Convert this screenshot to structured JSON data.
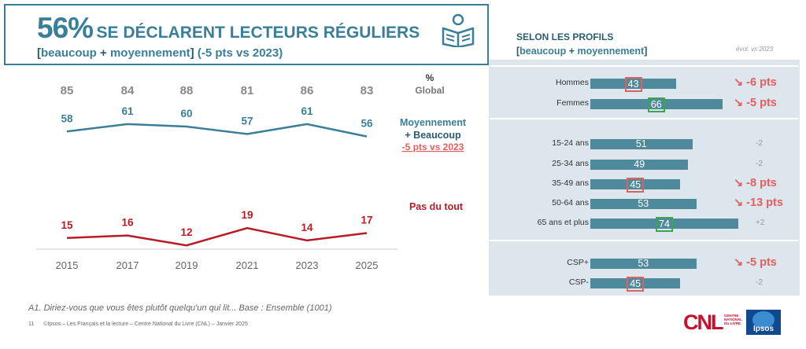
{
  "header": {
    "title_pct": "56%",
    "title_rest": "SE DÉCLARENT LECTEURS RÉGULIERS",
    "subtitle_open": "[",
    "subtitle_a": "beaucoup",
    "subtitle_plus": " + ",
    "subtitle_b": "moyennement",
    "subtitle_close": "]",
    "subtitle_evol": "(-5 pts vs 2023)"
  },
  "chart_data": [
    {
      "type": "line",
      "categories": [
        "2015",
        "2017",
        "2019",
        "2021",
        "2023",
        "2025"
      ],
      "global_header": "%",
      "global_label": "Global",
      "global_values": [
        85,
        84,
        88,
        81,
        86,
        83
      ],
      "series": [
        {
          "name": "Moyennement + Beaucoup",
          "values": [
            58,
            61,
            60,
            57,
            61,
            56
          ],
          "color": "#3a7f98",
          "note": "-5 pts vs 2023",
          "note_color": "#e06060"
        },
        {
          "name": "Pas du tout",
          "values": [
            15,
            16,
            12,
            19,
            14,
            17
          ],
          "color": "#b71c24"
        }
      ]
    },
    {
      "type": "bar",
      "title": "SELON LES PROFILS",
      "subtitle_open": "[",
      "subtitle_a": "beaucoup",
      "subtitle_plus": " + ",
      "subtitle_b": "moyennement",
      "subtitle_close": "]",
      "evol_header": "évol. vs 2023",
      "groups": [
        {
          "rows": [
            {
              "label": "Hommes",
              "value": 43,
              "box": "red",
              "evol": "↘ -6 pts",
              "evol_style": "big"
            },
            {
              "label": "Femmes",
              "value": 66,
              "box": "green",
              "evol": "↘ -5 pts",
              "evol_style": "big"
            }
          ]
        },
        {
          "rows": [
            {
              "label": "15-24 ans",
              "value": 51,
              "box": "",
              "evol": "-2",
              "evol_style": "small"
            },
            {
              "label": "25-34 ans",
              "value": 49,
              "box": "",
              "evol": "-2",
              "evol_style": "small"
            },
            {
              "label": "35-49 ans",
              "value": 45,
              "box": "red",
              "evol": "↘ -8 pts",
              "evol_style": "big"
            },
            {
              "label": "50-64 ans",
              "value": 53,
              "box": "",
              "evol": "↘ -13 pts",
              "evol_style": "big"
            },
            {
              "label": "65 ans et plus",
              "value": 74,
              "box": "green",
              "evol": "+2",
              "evol_style": "small"
            }
          ]
        },
        {
          "rows": [
            {
              "label": "CSP+",
              "value": 53,
              "box": "",
              "evol": "↘ -5 pts",
              "evol_style": "big"
            },
            {
              "label": "CSP-",
              "value": 45,
              "box": "red",
              "evol": "-2",
              "evol_style": "small"
            }
          ]
        }
      ]
    }
  ],
  "footer": {
    "question": "A1. Diriez-vous que vous êtes plutôt quelqu'un qui lit... Base : Ensemble (1001)",
    "page": "11",
    "credits": "©Ipsos – Les Français et la lecture – Centre National du Livre (CNL) – Janvier 2025"
  },
  "logos": {
    "cnl": "CNL",
    "cnl_sub": "CENTRE NATIONAL DU LIVRE",
    "ipsos": "Ipsos"
  },
  "icons": {
    "reader": "reading-person-icon"
  },
  "colors": {
    "teal": "#3a7f98",
    "red": "#b71c24",
    "alert": "#e06060",
    "bar": "#4f8a9c",
    "panel": "#dce6ec"
  }
}
